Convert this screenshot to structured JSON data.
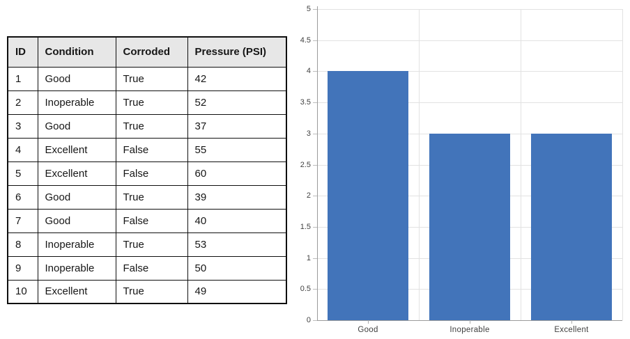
{
  "table": {
    "headers": [
      "ID",
      "Condition",
      "Corroded",
      "Pressure (PSI)"
    ],
    "rows": [
      [
        "1",
        "Good",
        "True",
        "42"
      ],
      [
        "2",
        "Inoperable",
        "True",
        "52"
      ],
      [
        "3",
        "Good",
        "True",
        "37"
      ],
      [
        "4",
        "Excellent",
        "False",
        "55"
      ],
      [
        "5",
        "Excellent",
        "False",
        "60"
      ],
      [
        "6",
        "Good",
        "True",
        "39"
      ],
      [
        "7",
        "Good",
        "False",
        "40"
      ],
      [
        "8",
        "Inoperable",
        "True",
        "53"
      ],
      [
        "9",
        "Inoperable",
        "False",
        "50"
      ],
      [
        "10",
        "Excellent",
        "True",
        "49"
      ]
    ]
  },
  "chart_data": {
    "type": "bar",
    "categories": [
      "Good",
      "Inoperable",
      "Excellent"
    ],
    "values": [
      4,
      3,
      3
    ],
    "title": "",
    "xlabel": "",
    "ylabel": "",
    "ylim": [
      0,
      5
    ],
    "ytick_step": 0.5,
    "grid": true,
    "legend": "none",
    "bar_color": "#4274BA",
    "gridline_color": "#E2E2E2",
    "axis_color": "#9B9B9B",
    "tick_label_color": "#3F3F3F"
  }
}
